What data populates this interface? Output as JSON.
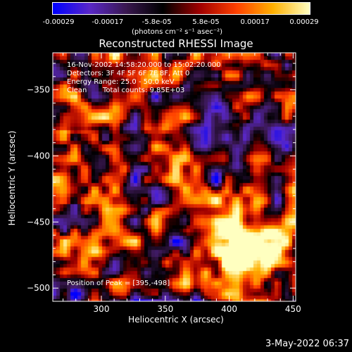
{
  "colorbar": {
    "ticks": [
      "-0.00029",
      "-0.00017",
      "-5.8e-05",
      "5.8e-05",
      "0.00017",
      "0.00029"
    ],
    "unit_label": "(photons cm⁻² s⁻¹ asec⁻²)",
    "colors": [
      "#0000ff",
      "#5a28c8",
      "#3a1850",
      "#000000",
      "#a00000",
      "#ff4000",
      "#ffb000",
      "#ffffc0"
    ]
  },
  "chart_data": {
    "type": "heatmap",
    "title": "Reconstructed RHESSI Image",
    "xlabel": "Heliocentric X (arcsec)",
    "ylabel": "Heliocentric Y (arcsec)",
    "xlim": [
      262,
      452
    ],
    "ylim": [
      -510,
      -322
    ],
    "xticks": [
      300,
      350,
      400,
      450
    ],
    "yticks": [
      -350,
      -400,
      -450,
      -500
    ],
    "color_range": [
      -0.00029,
      0.00029
    ],
    "annotations": {
      "time": "16-Nov-2002 14:58:20.000 to 15:02:20.000",
      "detectors": "Detectors: 3F 4F 5F 6F 7F 8F, Att 0",
      "energy": "Energy Range: 25.0 - 50.0 keV",
      "clean": "Clean",
      "counts": "Total counts: 9.85E+03",
      "peak": "Position of Peak = [395,-498]"
    },
    "peak": [
      395,
      -498
    ]
  },
  "timestamp": "3-May-2022 06:37"
}
